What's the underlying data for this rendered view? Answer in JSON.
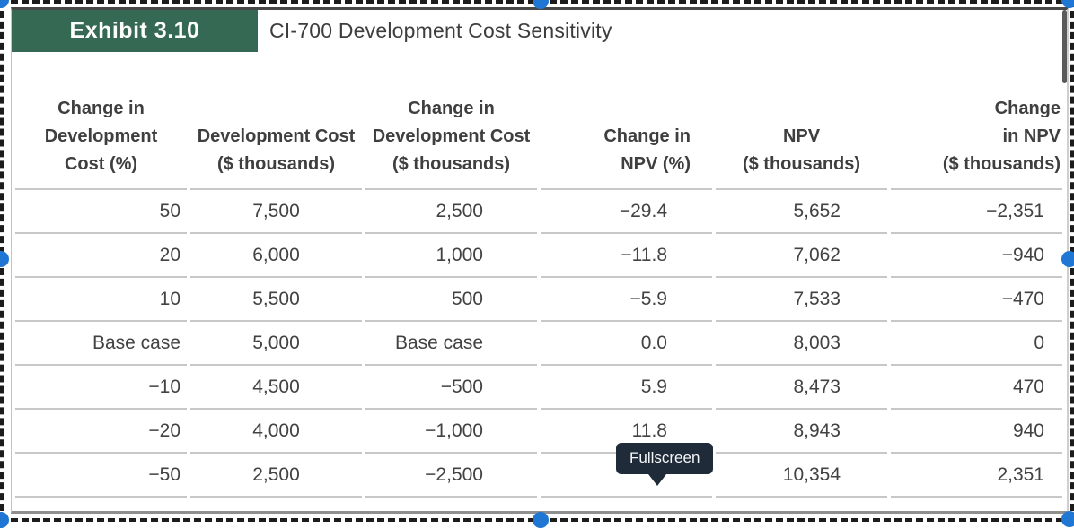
{
  "exhibit": {
    "badge": "Exhibit 3.10",
    "title": "CI-700 Development Cost Sensitivity"
  },
  "table": {
    "headers": [
      "Change in\nDevelopment\nCost (%)",
      "Development Cost\n($ thousands)",
      "Change in\nDevelopment Cost\n($ thousands)",
      "Change in\nNPV (%)",
      "NPV\n($ thousands)",
      "Change\nin NPV\n($ thousands)"
    ],
    "rows": [
      [
        "50",
        "7,500",
        "2,500",
        "−29.4",
        "5,652",
        "−2,351"
      ],
      [
        "20",
        "6,000",
        "1,000",
        "−11.8",
        "7,062",
        "−940"
      ],
      [
        "10",
        "5,500",
        "500",
        "−5.9",
        "7,533",
        "−470"
      ],
      [
        "Base case",
        "5,000",
        "Base case",
        "0.0",
        "8,003",
        "0"
      ],
      [
        "−10",
        "4,500",
        "−500",
        "5.9",
        "8,473",
        "470"
      ],
      [
        "−20",
        "4,000",
        "−1,000",
        "11.8",
        "8,943",
        "940"
      ],
      [
        "−50",
        "2,500",
        "−2,500",
        "",
        "10,354",
        "2,351"
      ]
    ]
  },
  "tooltip": {
    "label": "Fullscreen"
  },
  "colors": {
    "exhibit_green": "#366954",
    "handle_blue": "#1F76D3",
    "tooltip_bg": "#1F2B38",
    "separator": "#C8C8C8",
    "text": "#424242"
  }
}
